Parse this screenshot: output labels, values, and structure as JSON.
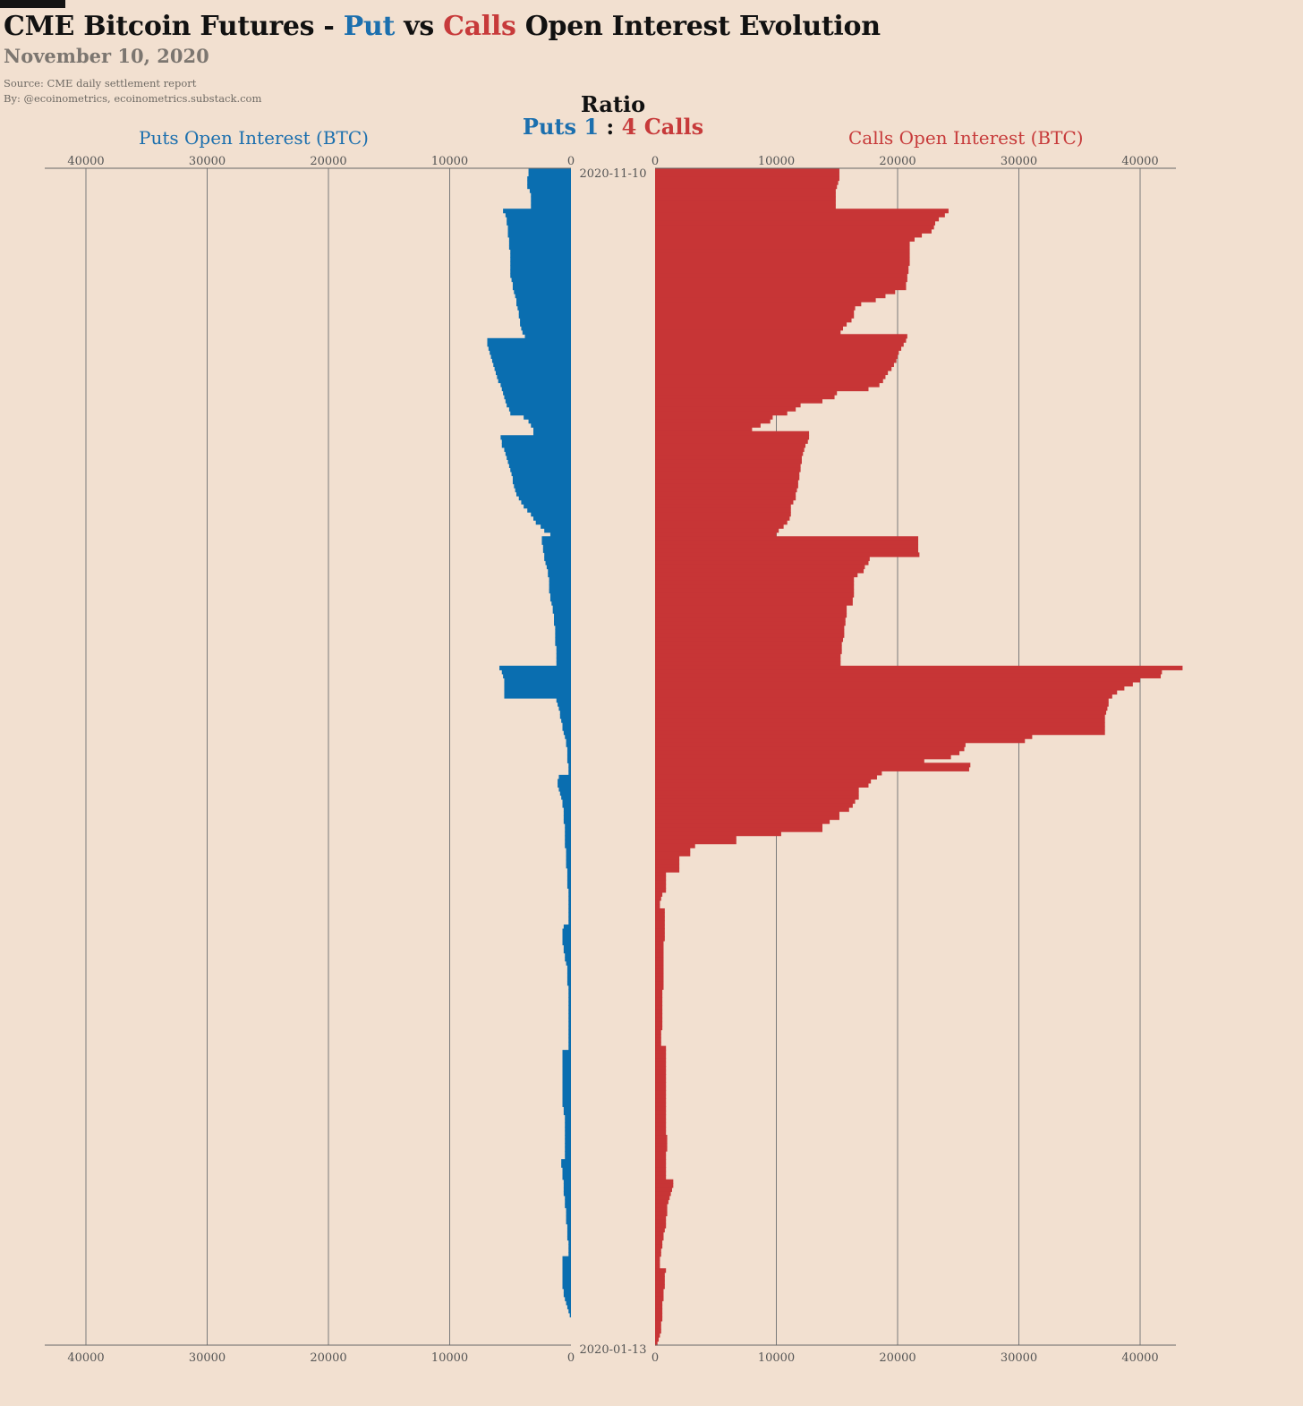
{
  "header": {
    "title_prefix": "CME Bitcoin Futures - ",
    "title_put": "Put",
    "title_vs": " vs ",
    "title_calls": "Calls",
    "title_suffix": " Open Interest Evolution",
    "subtitle": "November 10, 2020",
    "source": "Source: CME daily settlement report",
    "by": "By: @ecoinometrics, ecoinometrics.substack.com"
  },
  "ratio": {
    "title": "Ratio",
    "puts_label": "Puts 1",
    "separator": ":",
    "calls_label": "4 Calls"
  },
  "colors": {
    "puts": "#0a6eb0",
    "calls": "#c73536",
    "axis": "#7a7a7a",
    "background": "#f2e0d0"
  },
  "chart_data": {
    "type": "bar",
    "orientation": "horizontal-diverging",
    "left_panel": "Puts Open Interest (BTC)",
    "right_panel": "Calls Open Interest (BTC)",
    "x_ticks": [
      40000,
      30000,
      20000,
      10000,
      0
    ],
    "xlim": [
      0,
      43500
    ],
    "date_top": "2020-11-10",
    "date_bottom": "2020-01-13",
    "series": [
      {
        "name": "Puts",
        "values_newest_first": [
          3500,
          3500,
          3600,
          3600,
          3600,
          3400,
          3300,
          3300,
          3300,
          3300,
          5600,
          5400,
          5300,
          5300,
          5200,
          5200,
          5200,
          5100,
          5100,
          5100,
          5000,
          5000,
          5000,
          5000,
          5000,
          5000,
          5000,
          4900,
          4800,
          4800,
          4700,
          4600,
          4500,
          4500,
          4400,
          4300,
          4300,
          4200,
          4200,
          4100,
          4000,
          3800,
          6900,
          6900,
          6800,
          6700,
          6600,
          6500,
          6400,
          6300,
          6200,
          6100,
          6000,
          5800,
          5700,
          5600,
          5500,
          5400,
          5300,
          5100,
          5000,
          3900,
          3500,
          3300,
          3100,
          3100,
          5800,
          5700,
          5700,
          5500,
          5400,
          5300,
          5200,
          5100,
          5000,
          4900,
          4800,
          4800,
          4700,
          4600,
          4500,
          4300,
          4100,
          3900,
          3600,
          3300,
          3100,
          2900,
          2500,
          2200,
          1700,
          2400,
          2400,
          2300,
          2300,
          2200,
          2200,
          2100,
          2000,
          1900,
          1900,
          1800,
          1800,
          1800,
          1800,
          1700,
          1700,
          1600,
          1500,
          1500,
          1400,
          1400,
          1400,
          1300,
          1300,
          1300,
          1300,
          1300,
          1200,
          1200,
          1200,
          1200,
          1200,
          5900,
          5700,
          5600,
          5500,
          5500,
          5500,
          5500,
          5500,
          1200,
          1100,
          1000,
          900,
          900,
          800,
          700,
          700,
          600,
          500,
          400,
          400,
          300,
          300,
          300,
          300,
          200,
          200,
          200,
          1000,
          1100,
          1100,
          1000,
          900,
          800,
          700,
          700,
          600,
          600,
          600,
          600,
          500,
          500,
          500,
          500,
          500,
          500,
          400,
          400,
          400,
          400,
          400,
          300,
          300,
          300,
          300,
          300,
          200,
          200,
          200,
          200,
          200,
          200,
          200,
          200,
          200,
          600,
          700,
          700,
          700,
          700,
          600,
          600,
          500,
          500,
          400,
          300,
          300,
          300,
          300,
          300,
          200,
          200,
          200,
          200,
          200,
          200,
          200,
          200,
          200,
          200,
          200,
          200,
          200,
          200,
          200,
          200,
          700,
          700,
          700,
          700,
          700,
          700,
          700,
          700,
          700,
          700,
          700,
          700,
          700,
          700,
          600,
          600,
          500,
          500,
          500,
          500,
          500,
          500,
          500,
          500,
          500,
          500,
          500,
          800,
          800,
          700,
          700,
          700,
          600,
          600,
          600,
          600,
          500,
          500,
          500,
          400,
          400,
          400,
          400,
          300,
          300,
          300,
          300,
          200,
          200,
          200,
          200,
          700,
          700,
          700,
          700,
          700,
          700,
          700,
          700,
          600,
          600,
          500,
          400,
          300,
          200,
          100
        ]
      },
      {
        "name": "Calls",
        "values_newest_first": [
          15200,
          15200,
          15200,
          15100,
          15000,
          14900,
          14900,
          14900,
          14900,
          14900,
          24200,
          23900,
          23400,
          23100,
          23000,
          22800,
          22000,
          21400,
          21000,
          21000,
          21000,
          21000,
          21000,
          21000,
          20900,
          20900,
          20800,
          20800,
          20700,
          20700,
          19800,
          19000,
          18200,
          17000,
          16500,
          16400,
          16400,
          16200,
          15800,
          15500,
          15300,
          20800,
          20700,
          20500,
          20300,
          20100,
          20000,
          19900,
          19700,
          19500,
          19200,
          19000,
          18800,
          18500,
          17600,
          15000,
          14800,
          13800,
          12000,
          11600,
          10900,
          9700,
          9500,
          8700,
          8000,
          12700,
          12700,
          12600,
          12400,
          12300,
          12200,
          12100,
          12100,
          12000,
          12000,
          11900,
          11900,
          11800,
          11800,
          11700,
          11600,
          11600,
          11400,
          11200,
          11200,
          11200,
          11100,
          10900,
          10600,
          10200,
          10000,
          21700,
          21700,
          21700,
          21700,
          21800,
          17700,
          17600,
          17300,
          17200,
          16700,
          16400,
          16400,
          16400,
          16400,
          16400,
          16300,
          16300,
          15800,
          15800,
          15800,
          15700,
          15700,
          15600,
          15600,
          15600,
          15500,
          15400,
          15400,
          15400,
          15300,
          15300,
          15300,
          43500,
          41800,
          41700,
          40000,
          39400,
          38700,
          38100,
          37700,
          37400,
          37400,
          37300,
          37200,
          37100,
          37100,
          37100,
          37100,
          37100,
          31100,
          30500,
          25600,
          25500,
          25100,
          24400,
          22200,
          26000,
          25900,
          18700,
          18300,
          17800,
          17600,
          16800,
          16800,
          16800,
          16500,
          16300,
          16000,
          15200,
          15200,
          14400,
          13800,
          13800,
          10400,
          6700,
          6700,
          3300,
          2900,
          2900,
          2000,
          2000,
          2000,
          2000,
          900,
          900,
          900,
          900,
          900,
          600,
          500,
          400,
          400,
          800,
          800,
          800,
          800,
          800,
          800,
          800,
          800,
          700,
          700,
          700,
          700,
          700,
          700,
          700,
          700,
          700,
          700,
          700,
          700,
          600,
          600,
          600,
          600,
          600,
          600,
          600,
          600,
          600,
          600,
          500,
          500,
          500,
          500,
          900,
          900,
          900,
          900,
          900,
          900,
          900,
          900,
          900,
          900,
          900,
          900,
          900,
          900,
          900,
          900,
          900,
          900,
          900,
          900,
          900,
          900,
          1000,
          1000,
          1000,
          1000,
          900,
          900,
          900,
          900,
          900,
          900,
          900,
          1500,
          1500,
          1400,
          1300,
          1200,
          1100,
          1000,
          1000,
          1000,
          900,
          900,
          900,
          800,
          700,
          700,
          600,
          600,
          500,
          500,
          400,
          400,
          400,
          900,
          800,
          800,
          800,
          800,
          700,
          700,
          700,
          600,
          600,
          600,
          600,
          600,
          500,
          500,
          500,
          400,
          300,
          200
        ]
      }
    ],
    "ratio_text": "Puts 1 : 4 Calls"
  }
}
